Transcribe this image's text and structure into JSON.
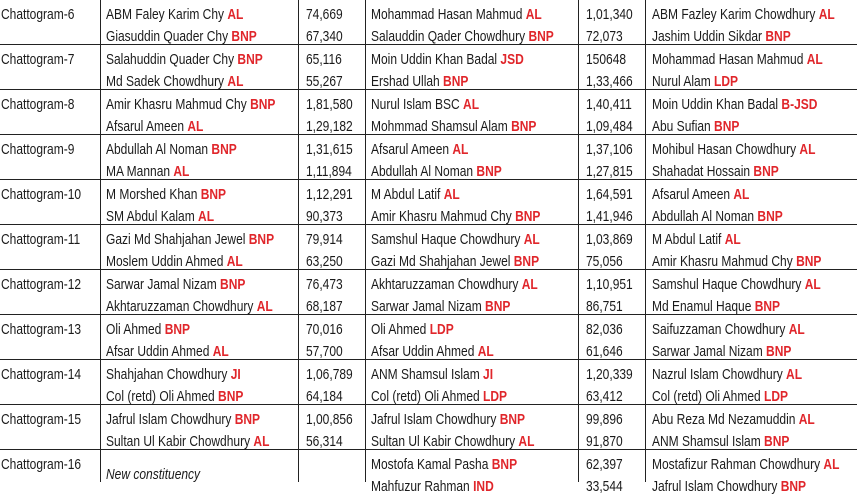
{
  "table": {
    "rows": [
      {
        "constituency": "Chattogram-6",
        "polls": [
          [
            {
              "name": "ABM Faley Karim Chy",
              "party": "AL",
              "votes": "74,669"
            },
            {
              "name": "Giasuddin Quader Chy",
              "party": "BNP",
              "votes": "67,340"
            }
          ],
          [
            {
              "name": "Mohammad Hasan Mahmud",
              "party": "AL",
              "votes": "1,01,340"
            },
            {
              "name": "Salauddin Qader Chowdhury",
              "party": "BNP",
              "votes": "72,073"
            }
          ],
          [
            {
              "name": "ABM Fazley Karim Chowdhury",
              "party": "AL"
            },
            {
              "name": "Jashim Uddin Sikdar",
              "party": "BNP"
            }
          ]
        ]
      },
      {
        "constituency": "Chattogram-7",
        "polls": [
          [
            {
              "name": "Salahuddin Quader Chy",
              "party": "BNP",
              "votes": "65,116"
            },
            {
              "name": "Md Sadek Chowdhury",
              "party": "AL",
              "votes": "55,267"
            }
          ],
          [
            {
              "name": "Moin Uddin Khan Badal",
              "party": "JSD",
              "votes": "150648"
            },
            {
              "name": "Ershad Ullah",
              "party": "BNP",
              "votes": "1,33,466"
            }
          ],
          [
            {
              "name": "Mohammad Hasan Mahmud",
              "party": "AL"
            },
            {
              "name": "Nurul Alam",
              "party": "LDP"
            }
          ]
        ]
      },
      {
        "constituency": "Chattogram-8",
        "polls": [
          [
            {
              "name": "Amir Khasru Mahmud Chy",
              "party": "BNP",
              "votes": "1,81,580"
            },
            {
              "name": "Afsarul Ameen",
              "party": "AL",
              "votes": "1,29,182"
            }
          ],
          [
            {
              "name": "Nurul Islam BSC",
              "party": "AL",
              "votes": "1,40,411"
            },
            {
              "name": "Mohmmad Shamsul Alam",
              "party": "BNP",
              "votes": "1,09,484"
            }
          ],
          [
            {
              "name": "Moin Uddin Khan Badal",
              "party": "B-JSD"
            },
            {
              "name": "Abu Sufian",
              "party": "BNP"
            }
          ]
        ]
      },
      {
        "constituency": "Chattogram-9",
        "polls": [
          [
            {
              "name": "Abdullah Al Noman",
              "party": "BNP",
              "votes": "1,31,615"
            },
            {
              "name": "MA Mannan",
              "party": "AL",
              "votes": "1,11,894"
            }
          ],
          [
            {
              "name": "Afsarul Ameen",
              "party": "AL",
              "votes": "1,37,106"
            },
            {
              "name": "Abdullah Al Noman",
              "party": "BNP",
              "votes": "1,27,815"
            }
          ],
          [
            {
              "name": "Mohibul Hasan Chowdhury",
              "party": "AL"
            },
            {
              "name": "Shahadat Hossain",
              "party": "BNP"
            }
          ]
        ]
      },
      {
        "constituency": "Chattogram-10",
        "polls": [
          [
            {
              "name": "M Morshed Khan",
              "party": "BNP",
              "votes": "1,12,291"
            },
            {
              "name": "SM Abdul Kalam",
              "party": "AL",
              "votes": "90,373"
            }
          ],
          [
            {
              "name": "M Abdul Latif",
              "party": "AL",
              "votes": "1,64,591"
            },
            {
              "name": "Amir Khasru Mahmud Chy",
              "party": "BNP",
              "votes": "1,41,946"
            }
          ],
          [
            {
              "name": "Afsarul Ameen",
              "party": "AL"
            },
            {
              "name": "Abdullah Al Noman",
              "party": "BNP"
            }
          ]
        ]
      },
      {
        "constituency": "Chattogram-11",
        "polls": [
          [
            {
              "name": "Gazi Md Shahjahan Jewel",
              "party": "BNP",
              "votes": "79,914"
            },
            {
              "name": "Moslem Uddin Ahmed",
              "party": "AL",
              "votes": "63,250"
            }
          ],
          [
            {
              "name": "Samshul Haque Chowdhury",
              "party": "AL",
              "votes": "1,03,869"
            },
            {
              "name": "Gazi Md Shahjahan Jewel",
              "party": "BNP",
              "votes": "75,056"
            }
          ],
          [
            {
              "name": "M Abdul Latif",
              "party": "AL"
            },
            {
              "name": "Amir Khasru Mahmud Chy",
              "party": "BNP"
            }
          ]
        ]
      },
      {
        "constituency": "Chattogram-12",
        "polls": [
          [
            {
              "name": "Sarwar Jamal Nizam",
              "party": "BNP",
              "votes": "76,473"
            },
            {
              "name": "Akhtaruzzaman Chowdhury",
              "party": "AL",
              "votes": "68,187"
            }
          ],
          [
            {
              "name": "Akhtaruzzaman Chowdhury",
              "party": "AL",
              "votes": "1,10,951"
            },
            {
              "name": "Sarwar Jamal Nizam",
              "party": "BNP",
              "votes": "86,751"
            }
          ],
          [
            {
              "name": "Samshul Haque Chowdhury",
              "party": "AL"
            },
            {
              "name": "Md Enamul Haque",
              "party": "BNP"
            }
          ]
        ]
      },
      {
        "constituency": "Chattogram-13",
        "polls": [
          [
            {
              "name": "Oli Ahmed",
              "party": "BNP",
              "votes": "70,016"
            },
            {
              "name": "Afsar Uddin Ahmed",
              "party": "AL",
              "votes": "57,700"
            }
          ],
          [
            {
              "name": "Oli Ahmed",
              "party": "LDP",
              "votes": "82,036"
            },
            {
              "name": "Afsar Uddin Ahmed",
              "party": "AL",
              "votes": "61,646"
            }
          ],
          [
            {
              "name": "Saifuzzaman Chowdhury",
              "party": "AL"
            },
            {
              "name": "Sarwar Jamal Nizam",
              "party": "BNP"
            }
          ]
        ]
      },
      {
        "constituency": "Chattogram-14",
        "polls": [
          [
            {
              "name": "Shahjahan Chowdhury",
              "party": "JI",
              "votes": "1,06,789"
            },
            {
              "name": "Col (retd) Oli Ahmed",
              "party": "BNP",
              "votes": "64,184"
            }
          ],
          [
            {
              "name": "ANM Shamsul Islam",
              "party": "JI",
              "votes": "1,20,339"
            },
            {
              "name": "Col (retd) Oli Ahmed",
              "party": "LDP",
              "votes": "63,412"
            }
          ],
          [
            {
              "name": "Nazrul Islam Chowdhury",
              "party": "AL"
            },
            {
              "name": "Col (retd) Oli Ahmed",
              "party": "LDP"
            }
          ]
        ]
      },
      {
        "constituency": "Chattogram-15",
        "polls": [
          [
            {
              "name": "Jafrul Islam Chowdhury",
              "party": "BNP",
              "votes": "1,00,856"
            },
            {
              "name": "Sultan Ul Kabir Chowdhury",
              "party": "AL",
              "votes": "56,314"
            }
          ],
          [
            {
              "name": "Jafrul Islam Chowdhury",
              "party": "BNP",
              "votes": "99,896"
            },
            {
              "name": "Sultan Ul Kabir Chowdhury",
              "party": "AL",
              "votes": "91,870"
            }
          ],
          [
            {
              "name": "Abu Reza Md Nezamuddin",
              "party": "AL"
            },
            {
              "name": "ANM Shamsul Islam",
              "party": "BNP"
            }
          ]
        ]
      },
      {
        "constituency": "Chattogram-16",
        "note": "New constituency",
        "polls": [
          [],
          [
            {
              "name": "Mostofa Kamal Pasha",
              "party": "BNP",
              "votes": "62,397"
            },
            {
              "name": "Mahfuzur Rahman",
              "party": "IND",
              "votes": "33,544"
            }
          ],
          [
            {
              "name": "Mostafizur Rahman Chowdhury",
              "party": "AL"
            },
            {
              "name": "Jafrul Islam Chowdhury",
              "party": "BNP"
            }
          ]
        ]
      }
    ]
  }
}
